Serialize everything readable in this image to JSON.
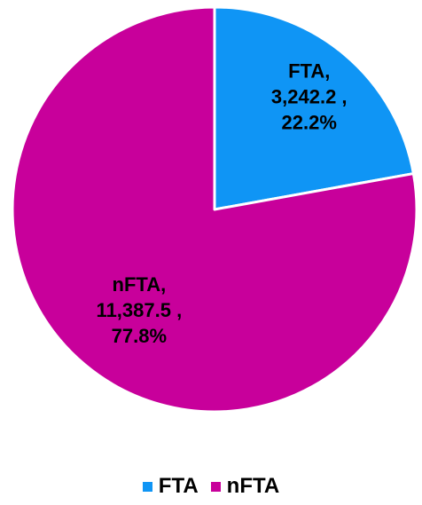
{
  "chart_data": {
    "type": "pie",
    "title": "",
    "slices": [
      {
        "name": "FTA",
        "value": 3242.2,
        "value_label": "3,242.2 ,",
        "percent_label": "22.2%",
        "color": "#0f95f5"
      },
      {
        "name": "nFTA",
        "value": 11387.5,
        "value_label": "11,387.5 ,",
        "percent_label": "77.8%",
        "color": "#c8009b"
      }
    ],
    "start_angle_deg": 0,
    "direction": "clockwise",
    "legend": {
      "position": "bottom"
    }
  }
}
